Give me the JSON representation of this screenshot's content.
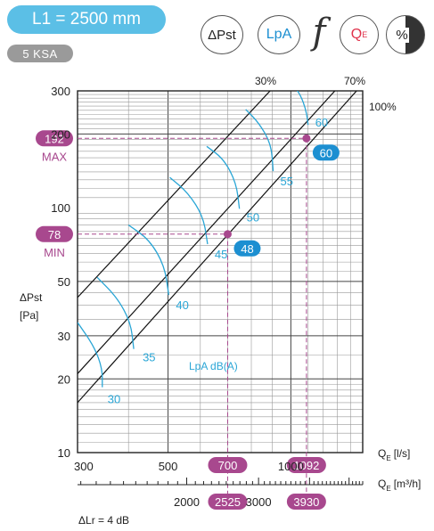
{
  "header": {
    "length_badge": "L1 = 2500 mm",
    "model_badge": "5 KSA",
    "icons": [
      {
        "name": "delta-p-icon",
        "label": "ΔPst"
      },
      {
        "name": "sound-power-icon",
        "label": "LpA"
      },
      {
        "name": "function-icon",
        "label": "f"
      },
      {
        "name": "flow-icon",
        "label": "Q",
        "sub": "E"
      },
      {
        "name": "percent-icon",
        "label": "%"
      }
    ]
  },
  "colors": {
    "blue": "#5bbfe6",
    "curve_blue": "#2aa6d6",
    "magenta": "#a8488e",
    "grey": "#9a9a9a",
    "badge_blue": "#1c8fd1"
  },
  "chart_data": {
    "type": "line",
    "xscale": "log",
    "yscale": "log",
    "xlim": [
      300,
      1500
    ],
    "ylim": [
      10,
      300
    ],
    "ylabel": "ΔPst",
    "yunit": "[Pa]",
    "x_axis_label": "Q",
    "x_axis_sub": "E",
    "x_axis_unit": "[l/s]",
    "x2_axis_unit": "[m³/h]",
    "x_ticks": [
      "300",
      "500",
      "1000"
    ],
    "x2_ticks": [
      "2000",
      "3000"
    ],
    "y_ticks": [
      "10",
      "20",
      "30",
      "50",
      "100",
      "200",
      "300"
    ],
    "note": "ΔLr = 4 dB",
    "noise_label": "LpA dB(A)",
    "opening_lines": [
      {
        "label": "30%",
        "points": [
          [
            300,
            43
          ],
          [
            1000,
            370
          ]
        ]
      },
      {
        "label": "70%",
        "points": [
          [
            300,
            21
          ],
          [
            1500,
            400
          ]
        ]
      },
      {
        "label": "100%",
        "points": [
          [
            300,
            16
          ],
          [
            1500,
            320
          ]
        ]
      }
    ],
    "sound_curves": [
      {
        "label": "30",
        "points": [
          [
            300,
            34
          ],
          [
            330,
            27
          ],
          [
            345,
            22
          ],
          [
            345,
            18.5
          ]
        ]
      },
      {
        "label": "35",
        "points": [
          [
            335,
            52
          ],
          [
            375,
            43
          ],
          [
            405,
            34
          ],
          [
            412,
            26.5
          ]
        ]
      },
      {
        "label": "40",
        "points": [
          [
            400,
            85
          ],
          [
            450,
            74
          ],
          [
            490,
            58
          ],
          [
            502,
            44
          ]
        ]
      },
      {
        "label": "45",
        "points": [
          [
            505,
            133
          ],
          [
            560,
            115
          ],
          [
            610,
            92
          ],
          [
            625,
            71
          ]
        ]
      },
      {
        "label": "50",
        "points": [
          [
            622,
            178
          ],
          [
            685,
            158
          ],
          [
            735,
            126
          ],
          [
            748,
            99
          ]
        ]
      },
      {
        "label": "55",
        "points": [
          [
            775,
            252
          ],
          [
            835,
            222
          ],
          [
            895,
            182
          ],
          [
            905,
            141
          ]
        ]
      },
      {
        "label": "60",
        "points": [
          [
            1010,
            318
          ],
          [
            1055,
            290
          ],
          [
            1090,
            250
          ],
          [
            1102,
            218
          ]
        ]
      }
    ],
    "operating_points": [
      {
        "state": "MIN",
        "flow": 700,
        "flow_m3h": 2525,
        "pressure": 78,
        "lpa": 48
      },
      {
        "state": "MAX",
        "flow": 1092,
        "flow_m3h": 3930,
        "pressure": 192,
        "lpa": 60
      }
    ]
  }
}
